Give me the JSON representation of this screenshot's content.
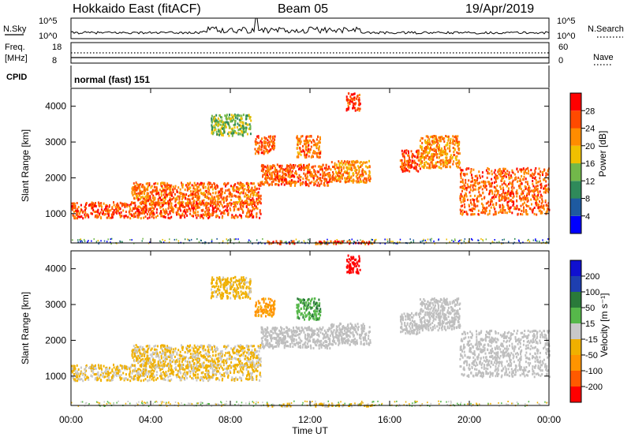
{
  "header": {
    "station": "Hokkaido East (fitACF)",
    "beam": "Beam 05",
    "date": "19/Apr/2019"
  },
  "panels": {
    "nsky_label": "N.Sky",
    "nsearch_label": "N.Search",
    "noise_ticks": [
      "10^5",
      "10^0"
    ],
    "freq_label": "Freq.",
    "freq_unit": "[MHz]",
    "freq_ticks": [
      "18",
      "8"
    ],
    "nave_label": "Nave",
    "nave_ticks": [
      "60",
      "0"
    ],
    "cpid_label": "CPID",
    "cpid_value": "normal (fast) 151"
  },
  "colors": {
    "power": [
      "#0000ff",
      "#1e5aa0",
      "#2f8a5a",
      "#72b84a",
      "#f0c000",
      "#ff8c00",
      "#ff4a00",
      "#ff0000"
    ],
    "velocity": [
      "#ff0000",
      "#ff5a00",
      "#ff9400",
      "#f0b000",
      "#c8c8c8",
      "#56b84a",
      "#2a7a3a",
      "#1e3fb0",
      "#1010d0"
    ],
    "ground_scatter": "#bfbfbf"
  },
  "chart_data": [
    {
      "type": "heatmap",
      "title": "Power",
      "ylabel": "Slant Range [km]",
      "xlabel": "Time UT",
      "xlim": [
        "00:00",
        "24:00"
      ],
      "x_ticks": [
        "00:00",
        "04:00",
        "08:00",
        "12:00",
        "16:00",
        "20:00",
        "00:00"
      ],
      "ylim": [
        180,
        4500
      ],
      "y_ticks": [
        1000,
        2000,
        3000,
        4000
      ],
      "colorbar": {
        "label": "Power [dB]",
        "range": [
          0,
          32
        ],
        "ticks": [
          4,
          8,
          12,
          16,
          20,
          24,
          28
        ]
      }
    },
    {
      "type": "heatmap",
      "title": "Velocity",
      "ylabel": "Slant Range [km]",
      "xlabel": "Time UT",
      "xlim": [
        "00:00",
        "24:00"
      ],
      "x_ticks": [
        "00:00",
        "04:00",
        "08:00",
        "12:00",
        "16:00",
        "20:00",
        "00:00"
      ],
      "ylim": [
        180,
        4500
      ],
      "y_ticks": [
        1000,
        2000,
        3000,
        4000
      ],
      "colorbar": {
        "label": "Velocity [m s⁻¹]",
        "range": [
          -250,
          250
        ],
        "ticks": [
          -200,
          -100,
          -50,
          -15,
          15,
          50,
          100,
          200
        ]
      }
    }
  ],
  "scatter_regions": [
    {
      "t": [
        0.0,
        9.5
      ],
      "r": [
        900,
        1350
      ],
      "power": 26,
      "velocity": -20,
      "kind": "ionospheric"
    },
    {
      "t": [
        3.0,
        9.5
      ],
      "r": [
        1300,
        1900
      ],
      "power": 24,
      "velocity": -20,
      "kind": "ionospheric"
    },
    {
      "t": [
        9.5,
        13.0
      ],
      "r": [
        1800,
        2400
      ],
      "power": 25,
      "velocity": 0,
      "kind": "ground"
    },
    {
      "t": [
        13.0,
        15.0
      ],
      "r": [
        1900,
        2500
      ],
      "power": 22,
      "velocity": 0,
      "kind": "ground"
    },
    {
      "t": [
        9.2,
        10.2
      ],
      "r": [
        2700,
        3200
      ],
      "power": 25,
      "velocity": -60,
      "kind": "ionospheric"
    },
    {
      "t": [
        11.3,
        12.5
      ],
      "r": [
        2600,
        3200
      ],
      "power": 24,
      "velocity": 40,
      "kind": "ionospheric"
    },
    {
      "t": [
        7.0,
        9.0
      ],
      "r": [
        3200,
        3800
      ],
      "power": 14,
      "velocity": -30,
      "kind": "ionospheric"
    },
    {
      "t": [
        13.8,
        14.5
      ],
      "r": [
        3900,
        4400
      ],
      "power": 27,
      "velocity": -220,
      "kind": "ionospheric"
    },
    {
      "t": [
        16.5,
        17.5
      ],
      "r": [
        2200,
        2800
      ],
      "power": 26,
      "velocity": 0,
      "kind": "ground"
    },
    {
      "t": [
        17.5,
        19.5
      ],
      "r": [
        2300,
        3200
      ],
      "power": 22,
      "velocity": 0,
      "kind": "ground"
    },
    {
      "t": [
        19.5,
        24.0
      ],
      "r": [
        1000,
        2300
      ],
      "power": 25,
      "velocity": 0,
      "kind": "ground"
    },
    {
      "t": [
        9.8,
        11.2
      ],
      "r": [
        180,
        260
      ],
      "power": 26,
      "velocity": -20,
      "kind": "ionospheric"
    },
    {
      "t": [
        12.2,
        15.2
      ],
      "r": [
        180,
        260
      ],
      "power": 26,
      "velocity": -20,
      "kind": "ionospheric"
    }
  ]
}
